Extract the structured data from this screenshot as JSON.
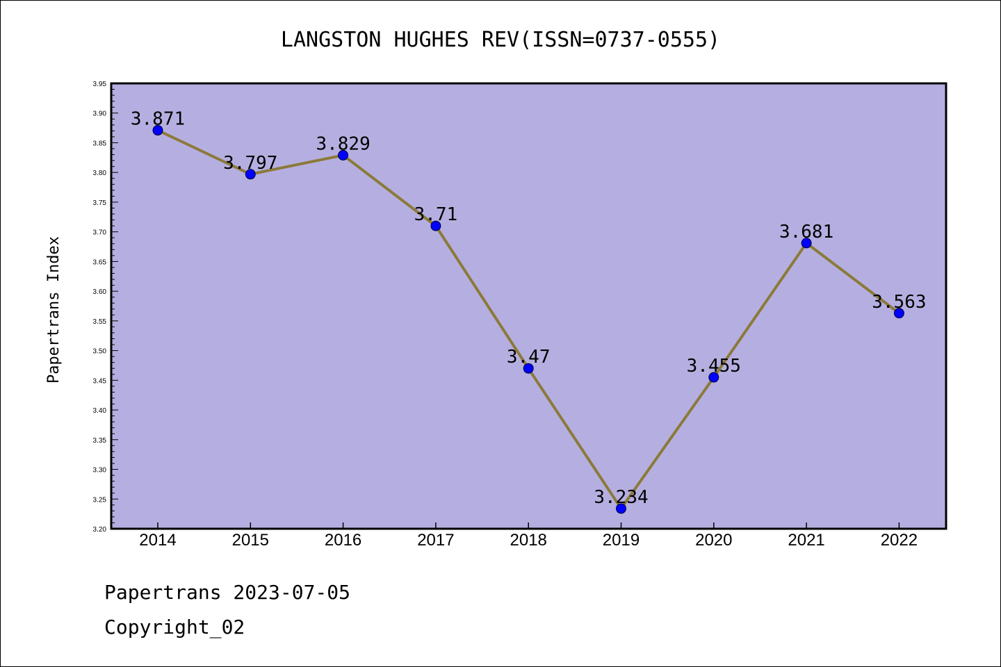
{
  "chart_data": {
    "type": "line",
    "title": "LANGSTON HUGHES REV(ISSN=0737-0555)",
    "ylabel": "Papertrans Index",
    "xlabel": "",
    "x": [
      "2014",
      "2015",
      "2016",
      "2017",
      "2018",
      "2019",
      "2020",
      "2021",
      "2022"
    ],
    "series": [
      {
        "values": [
          3.871,
          3.797,
          3.829,
          3.71,
          3.47,
          3.234,
          3.455,
          3.681,
          3.563
        ],
        "labels": [
          "3.871",
          "3.797",
          "3.829",
          "3.71",
          "3.47",
          "3.234",
          "3.455",
          "3.681",
          "3.563"
        ]
      }
    ],
    "ylim": [
      3.2,
      3.95
    ],
    "yticks": [
      "3.20",
      "3.25",
      "3.30",
      "3.35",
      "3.40",
      "3.45",
      "3.50",
      "3.55",
      "3.60",
      "3.65",
      "3.70",
      "3.75",
      "3.80",
      "3.85",
      "3.90",
      "3.95"
    ],
    "grid": false,
    "colors": {
      "plot_bg": "#b5afe1",
      "line": "#8b7a3a",
      "marker": "#0000ff"
    }
  },
  "footer": {
    "line1": "Papertrans 2023-07-05",
    "line2": "Copyright_02"
  }
}
